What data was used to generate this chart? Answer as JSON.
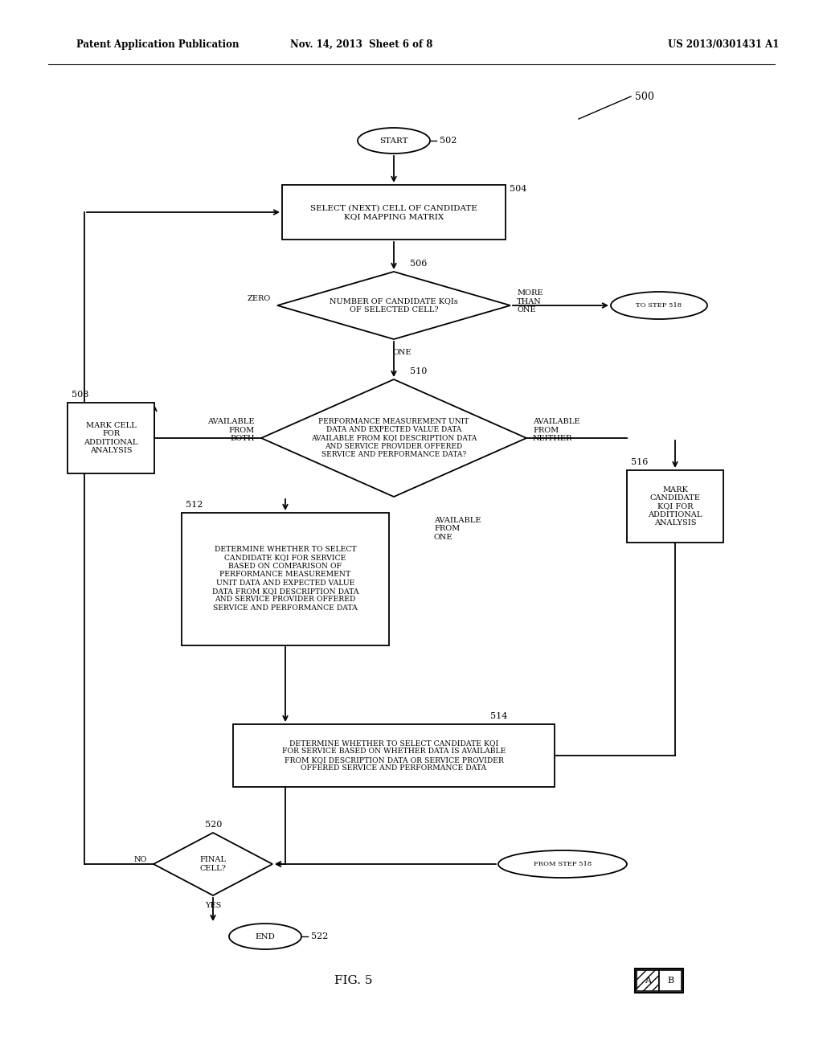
{
  "title_left": "Patent Application Publication",
  "title_mid": "Nov. 14, 2013  Sheet 6 of 8",
  "title_right": "US 2013/0301431 A1",
  "fig_label": "FIG. 5",
  "ref_500": "500",
  "ref_502": "502",
  "ref_504": "504",
  "ref_506": "506",
  "ref_508": "508",
  "ref_510": "510",
  "ref_512": "512",
  "ref_514": "514",
  "ref_516": "516",
  "ref_518": "TO STEP 518",
  "ref_518b": "FROM STEP 518",
  "ref_520": "520",
  "ref_522": "522",
  "box_504": "SELECT (NEXT) CELL OF CANDIDATE\nKQI MAPPING MATRIX",
  "diamond_506": "NUMBER OF CANDIDATE KQIs\nOF SELECTED CELL?",
  "box_508": "MARK CELL\nFOR\nADDITIONAL\nANALYSIS",
  "diamond_510": "PERFORMANCE MEASUREMENT UNIT\nDATA AND EXPECTED VALUE DATA\nAVAILABLE FROM KQI DESCRIPTION DATA\nAND SERVICE PROVIDER OFFERED\nSERVICE AND PERFORMANCE DATA?",
  "box_512": "DETERMINE WHETHER TO SELECT\nCANDIDATE KQI FOR SERVICE\nBASED ON COMPARISON OF\nPERFORMANCE MEASUREMENT\nUNIT DATA AND EXPECTED VALUE\nDATA FROM KQI DESCRIPTION DATA\nAND SERVICE PROVIDER OFFERED\nSERVICE AND PERFORMANCE DATA",
  "box_514": "DETERMINE WHETHER TO SELECT CANDIDATE KQI\nFOR SERVICE BASED ON WHETHER DATA IS AVAILABLE\nFROM KQI DESCRIPTION DATA OR SERVICE PROVIDER\nOFFERED SERVICE AND PERFORMANCE DATA",
  "box_516": "MARK\nCANDIDATE\nKQI FOR\nADDITIONAL\nANALYSIS",
  "diamond_520": "FINAL\nCELL?",
  "start_label": "START",
  "end_label": "END",
  "label_zero": "ZERO",
  "label_one_506": "ONE",
  "label_more_than_one": "MORE\nTHAN\nONE",
  "label_avail_both": "AVAILABLE\nFROM\nBOTH",
  "label_avail_neither": "AVAILABLE\nFROM\nNEITHER",
  "label_avail_one": "AVAILABLE\nFROM\nONE",
  "label_no": "NO",
  "label_yes": "YES",
  "bg_color": "#ffffff",
  "line_color": "#000000",
  "text_color": "#000000",
  "box_fill": "#ffffff",
  "font_size_small": 7.0,
  "font_size_box": 7.5,
  "font_size_label": 8.0,
  "font_size_header": 8.5,
  "font_size_fig": 11.0
}
